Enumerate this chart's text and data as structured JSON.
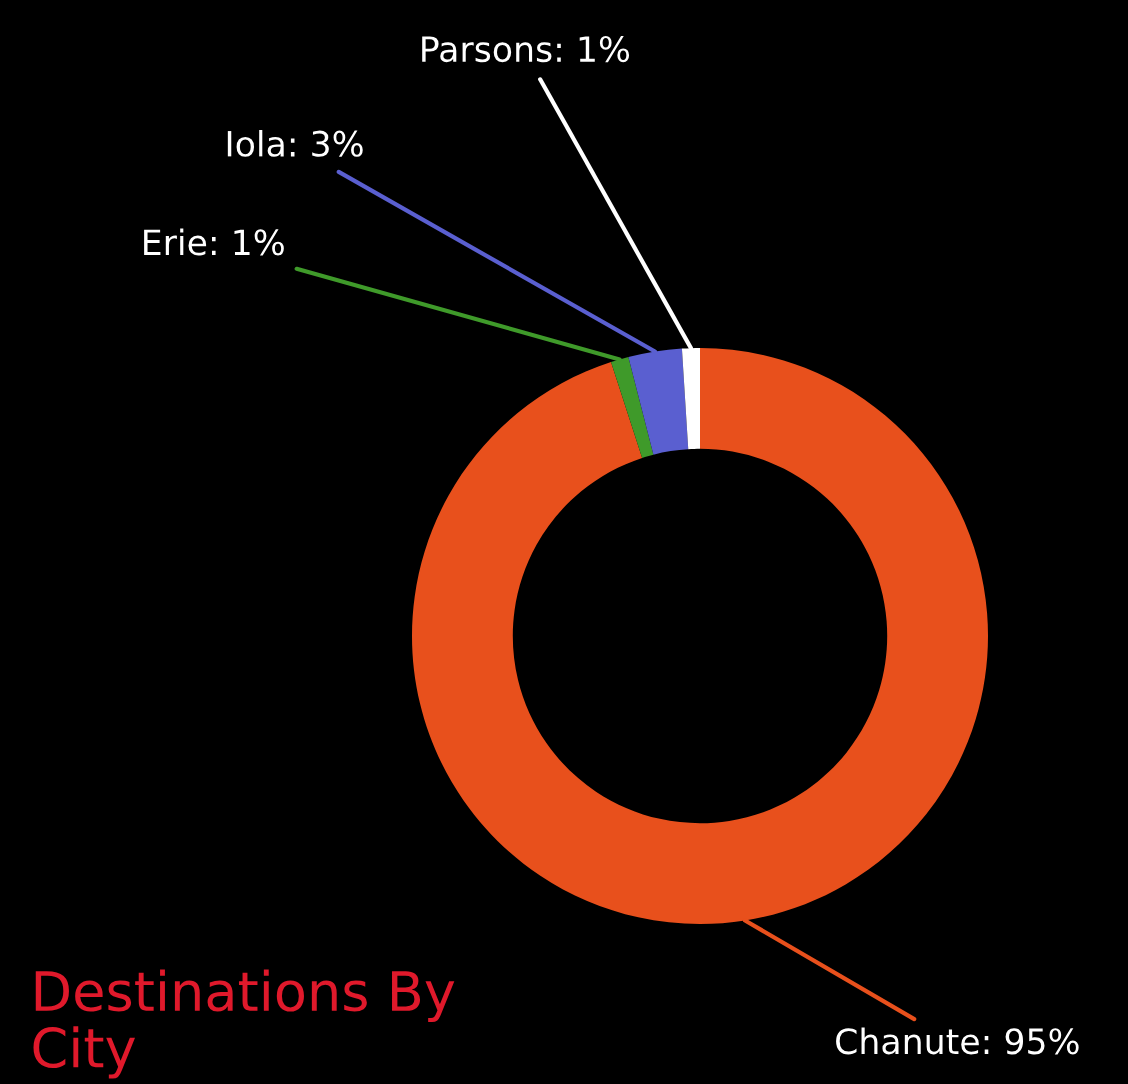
{
  "chart_data": {
    "type": "donut",
    "title": "Destinations By City",
    "categories": [
      "Chanute",
      "Erie",
      "Iola",
      "Parsons"
    ],
    "values": [
      95,
      1,
      3,
      1
    ],
    "colors": [
      "#e8501c",
      "#3f9a2a",
      "#5a5fd0",
      "#ffffff"
    ],
    "value_labels": [
      "95%",
      "1%",
      "3%",
      "1%"
    ],
    "legend": false
  }
}
